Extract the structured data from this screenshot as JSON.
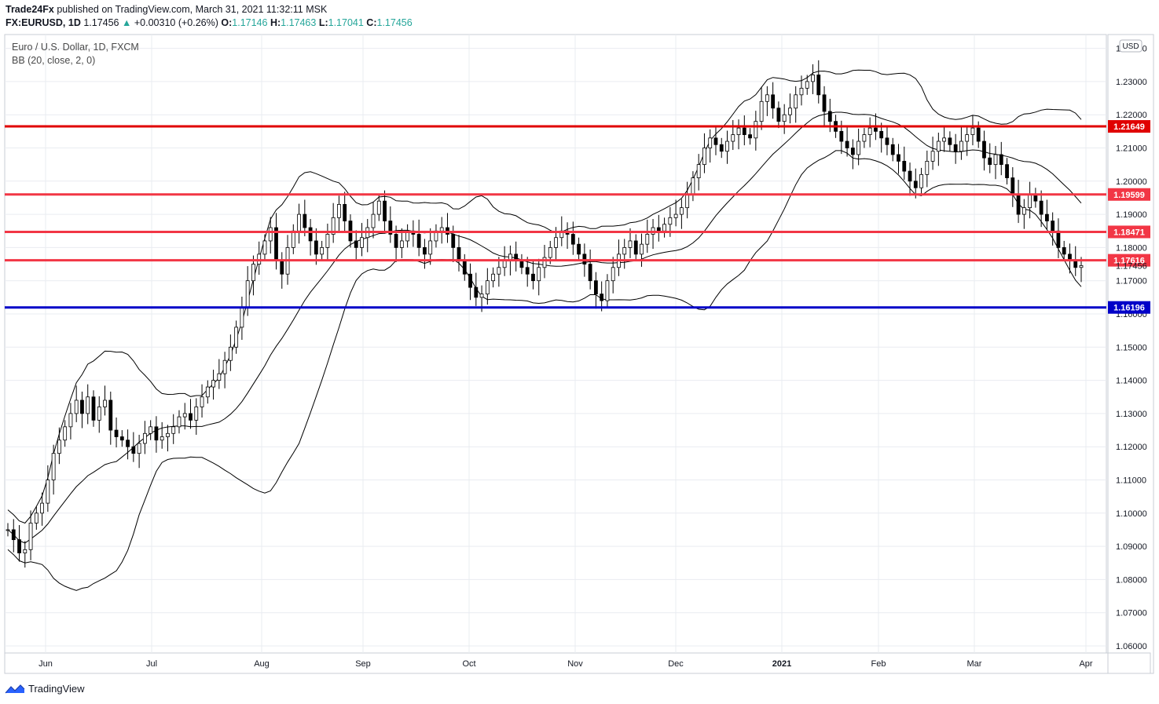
{
  "header": {
    "publisher": "Trade24Fx",
    "published_text": "published on TradingView.com, March 31, 2021 11:32:11 MSK",
    "symbol": "FX:EURUSD, 1D",
    "last": "1.17456",
    "change": "+0.00310 (+0.26%)",
    "o_label": "O:",
    "o": "1.17146",
    "h_label": "H:",
    "h": "1.17463",
    "l_label": "L:",
    "l": "1.17041",
    "c_label": "C:",
    "c": "1.17456"
  },
  "legend": {
    "title": "Euro / U.S. Dollar, 1D, FXCM",
    "indicator": "BB (20, close, 2, 0)"
  },
  "currency_badge": "USD",
  "brand": "TradingView",
  "colors": {
    "red_line": "#f23645",
    "red_line_strong": "#e00000",
    "blue_line": "#0000c8",
    "grid": "#e9ecf1",
    "candle": "#000000",
    "accent": "#2962ff"
  },
  "chart_data": {
    "type": "candlestick",
    "title": "Euro / U.S. Dollar, 1D, FXCM",
    "indicator": "BB (20, close, 2, 0)",
    "y_range": [
      1.055,
      1.24
    ],
    "y_ticks": [
      "1.06000",
      "1.07000",
      "1.08000",
      "1.09000",
      "1.10000",
      "1.11000",
      "1.12000",
      "1.13000",
      "1.14000",
      "1.15000",
      "1.16000",
      "1.17000",
      "1.18000",
      "1.19000",
      "1.20000",
      "1.21000",
      "1.22000",
      "1.23000",
      "1.24000"
    ],
    "y_tick_values": [
      1.06,
      1.07,
      1.08,
      1.09,
      1.1,
      1.11,
      1.12,
      1.13,
      1.14,
      1.15,
      1.16,
      1.17,
      1.18,
      1.19,
      1.2,
      1.21,
      1.22,
      1.23,
      1.24
    ],
    "x_labels": [
      "Jun",
      "Jul",
      "Aug",
      "Sep",
      "Oct",
      "Nov",
      "Dec",
      "2021",
      "Feb",
      "Mar",
      "Apr"
    ],
    "last_price_label": "1.17456",
    "last_price": 1.17456,
    "horizontal_levels": [
      {
        "value": 1.21649,
        "label": "1.21649",
        "color": "#e00000"
      },
      {
        "value": 1.19599,
        "label": "1.19599",
        "color": "#f23645"
      },
      {
        "value": 1.18471,
        "label": "1.18471",
        "color": "#f23645"
      },
      {
        "value": 1.17616,
        "label": "1.17616",
        "color": "#f23645"
      },
      {
        "value": 1.16196,
        "label": "1.16196",
        "color": "#0000c8"
      }
    ],
    "closes": [
      1.095,
      1.092,
      1.088,
      1.089,
      1.097,
      1.1,
      1.103,
      1.11,
      1.118,
      1.122,
      1.126,
      1.13,
      1.134,
      1.13,
      1.135,
      1.128,
      1.132,
      1.134,
      1.125,
      1.123,
      1.122,
      1.12,
      1.118,
      1.121,
      1.124,
      1.126,
      1.122,
      1.123,
      1.124,
      1.126,
      1.129,
      1.13,
      1.128,
      1.132,
      1.135,
      1.138,
      1.14,
      1.142,
      1.146,
      1.15,
      1.156,
      1.162,
      1.17,
      1.175,
      1.178,
      1.182,
      1.186,
      1.176,
      1.172,
      1.18,
      1.185,
      1.19,
      1.186,
      1.182,
      1.178,
      1.18,
      1.184,
      1.189,
      1.193,
      1.188,
      1.182,
      1.18,
      1.183,
      1.186,
      1.19,
      1.194,
      1.188,
      1.184,
      1.18,
      1.182,
      1.185,
      1.184,
      1.18,
      1.178,
      1.182,
      1.185,
      1.186,
      1.184,
      1.18,
      1.176,
      1.172,
      1.168,
      1.165,
      1.166,
      1.17,
      1.172,
      1.174,
      1.176,
      1.178,
      1.176,
      1.174,
      1.172,
      1.17,
      1.174,
      1.177,
      1.18,
      1.183,
      1.185,
      1.184,
      1.181,
      1.178,
      1.175,
      1.17,
      1.166,
      1.164,
      1.17,
      1.174,
      1.178,
      1.18,
      1.182,
      1.178,
      1.181,
      1.184,
      1.186,
      1.185,
      1.187,
      1.189,
      1.19,
      1.192,
      1.196,
      1.201,
      1.205,
      1.21,
      1.213,
      1.211,
      1.209,
      1.212,
      1.214,
      1.216,
      1.214,
      1.213,
      1.218,
      1.224,
      1.226,
      1.222,
      1.218,
      1.22,
      1.222,
      1.226,
      1.228,
      1.23,
      1.232,
      1.226,
      1.221,
      1.218,
      1.215,
      1.212,
      1.21,
      1.208,
      1.212,
      1.214,
      1.216,
      1.215,
      1.213,
      1.211,
      1.208,
      1.206,
      1.203,
      1.2,
      1.198,
      1.202,
      1.206,
      1.209,
      1.212,
      1.213,
      1.211,
      1.209,
      1.212,
      1.214,
      1.216,
      1.212,
      1.207,
      1.205,
      1.208,
      1.205,
      1.201,
      1.196,
      1.19,
      1.192,
      1.196,
      1.194,
      1.19,
      1.188,
      1.185,
      1.18,
      1.178,
      1.176,
      1.174,
      1.17456
    ]
  }
}
